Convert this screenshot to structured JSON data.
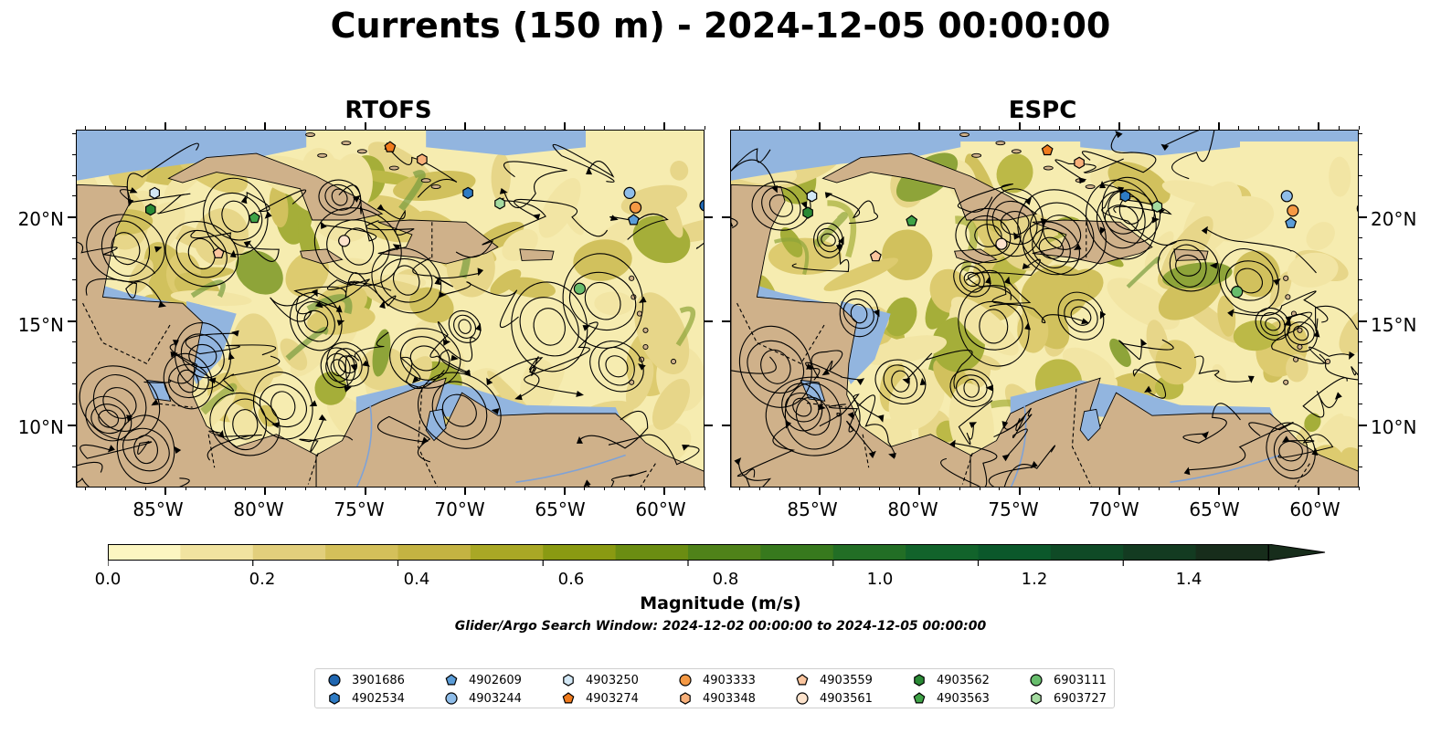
{
  "title": "Currents (150 m) - 2024-12-05 00:00:00",
  "panels": [
    {
      "title": "RTOFS"
    },
    {
      "title": "ESPC"
    }
  ],
  "latitude_labels": [
    "20°N",
    "15°N",
    "10°N"
  ],
  "longitude_labels": [
    "85°W",
    "80°W",
    "75°W",
    "70°W",
    "65°W",
    "60°W"
  ],
  "colorbar": {
    "label": "Magnitude (m/s)",
    "ticks": [
      "0.0",
      "0.2",
      "0.4",
      "0.6",
      "0.8",
      "1.0",
      "1.2",
      "1.4"
    ],
    "range": [
      0.0,
      1.6
    ],
    "extend": "max",
    "colors": [
      "#fcf6c1",
      "#f1e3a0",
      "#e2cf7c",
      "#d4c05a",
      "#c4b342",
      "#a9a825",
      "#8a9a12",
      "#6b8d12",
      "#4f8219",
      "#37791d",
      "#226e25",
      "#12632b",
      "#0b582b",
      "#0f4a26",
      "#133b21",
      "#172d1b"
    ]
  },
  "search_window": "Glider/Argo Search Window: 2024-12-02 00:00:00 to 2024-12-05 00:00:00",
  "map_colors": {
    "land": "#cfb18a",
    "ocean_shallow": "#92b5df",
    "water_field": "#f6ecb0"
  },
  "floats": [
    {
      "id": "3901686",
      "marker": "circle",
      "color": "#1f66b0",
      "lon": -58.0,
      "lat": 20.6
    },
    {
      "id": "4902534",
      "marker": "hexagon",
      "color": "#2e7bc4",
      "lon": -69.9,
      "lat": 21.2
    },
    {
      "id": "4902609",
      "marker": "pentagon",
      "color": "#5b9dd8",
      "lon": -61.6,
      "lat": 19.9
    },
    {
      "id": "4903244",
      "marker": "circle",
      "color": "#8fbde9",
      "lon": -61.8,
      "lat": 21.2
    },
    {
      "id": "4903250",
      "marker": "hexagon",
      "color": "#d3e8f6",
      "lon": -85.6,
      "lat": 21.2
    },
    {
      "id": "4903274",
      "marker": "pentagon",
      "color": "#f07b1d",
      "lon": -73.8,
      "lat": 23.4
    },
    {
      "id": "4903333",
      "marker": "circle",
      "color": "#f59944",
      "lon": -61.5,
      "lat": 20.5
    },
    {
      "id": "4903348",
      "marker": "hexagon",
      "color": "#f8b07a",
      "lon": -72.2,
      "lat": 22.8
    },
    {
      "id": "4903559",
      "marker": "pentagon",
      "color": "#fbc59e",
      "lon": -82.4,
      "lat": 18.3
    },
    {
      "id": "4903561",
      "marker": "circle",
      "color": "#fde3cc",
      "lon": -76.1,
      "lat": 18.9
    },
    {
      "id": "4903562",
      "marker": "hexagon",
      "color": "#2a8a35",
      "lon": -85.8,
      "lat": 20.4
    },
    {
      "id": "4903563",
      "marker": "pentagon",
      "color": "#3fa347",
      "lon": -80.6,
      "lat": 20.0
    },
    {
      "id": "6903111",
      "marker": "circle",
      "color": "#67bd6c",
      "lon": -64.3,
      "lat": 16.6
    },
    {
      "id": "6903727",
      "marker": "hexagon",
      "color": "#a4dba0",
      "lon": -68.3,
      "lat": 20.7
    }
  ]
}
